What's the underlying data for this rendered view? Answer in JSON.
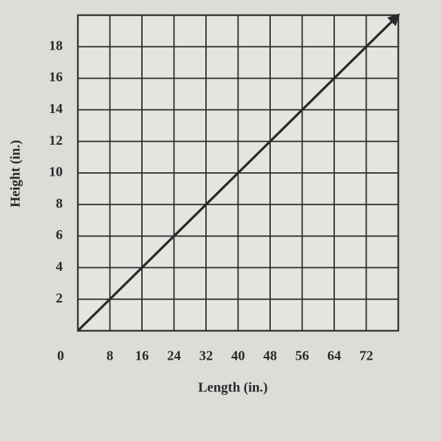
{
  "chart_data": {
    "type": "line",
    "x_label": "Length (in.)",
    "y_label": "Height (in.)",
    "x": [
      0,
      80
    ],
    "values": [
      0,
      20
    ],
    "color": "#2a2a2a",
    "xlim": [
      0,
      80
    ],
    "ylim": [
      0,
      20
    ],
    "xticks": [
      0,
      8,
      16,
      24,
      32,
      40,
      48,
      56,
      64,
      72
    ],
    "yticks": [
      2,
      4,
      6,
      8,
      10,
      12,
      14,
      16,
      18
    ],
    "grid": true
  }
}
